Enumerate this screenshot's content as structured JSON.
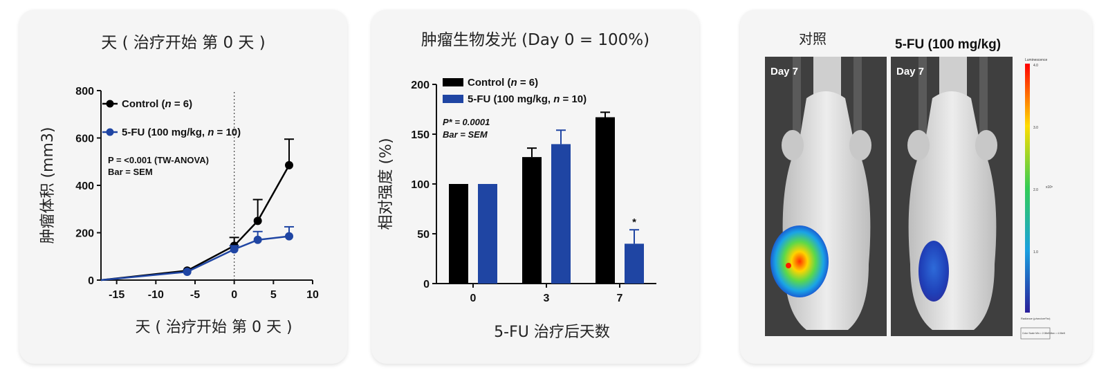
{
  "panels": {
    "left": {
      "title": "天 ( 治疗开始 第 0 天 )",
      "xlabel": "天 ( 治疗开始 第 0 天 )",
      "ylabel": "肿瘤体积 (mm3)",
      "note_line1": "P = <0.001 (TW-ANOVA)",
      "note_line2": "Bar = SEM"
    },
    "middle": {
      "title": "肿瘤生物发光 (Day 0 = 100%)",
      "xlabel": "5-FU 治疗后天数",
      "ylabel": "相对强度 (%)",
      "note_line1": "P* = 0.0001",
      "note_line2": "Bar = SEM",
      "star_label": "*"
    },
    "right": {
      "title_left": "对照",
      "title_right": "5-FU (100 mg/kg)",
      "day_left": "Day 7",
      "day_right": "Day 7",
      "scale_title": "Luminescence",
      "scale_ticks": [
        "4.0",
        "3.0",
        "2.0",
        "1.0"
      ],
      "scale_exp": "x10⁸",
      "scale_footer": "Radiance (p/sec/cm²/sr)",
      "scale_box": "Color Scale Min = 2.08e8 Max = 4.06e8"
    }
  },
  "colors": {
    "control": "#000000",
    "treatment": "#1f45a3"
  },
  "chart_data": [
    {
      "type": "line",
      "title": "天 ( 治疗开始 第 0 天 )",
      "xlabel": "天 ( 治疗开始 第 0 天 )",
      "ylabel": "肿瘤体积 (mm3)",
      "xlim": [
        -17,
        10
      ],
      "ylim": [
        0,
        800
      ],
      "xticks": [
        "-15",
        "-10",
        "-5",
        "0",
        "5",
        "10"
      ],
      "yticks": [
        "0",
        "200",
        "400",
        "600",
        "800"
      ],
      "series": [
        {
          "name_prefix": "Control (",
          "name_italic": "n",
          "name_suffix": " = 6)",
          "name": "Control (n = 6)",
          "x": [
            -17,
            -6,
            0,
            3,
            7
          ],
          "y": [
            0,
            40,
            145,
            250,
            485
          ],
          "err": [
            0,
            0,
            35,
            90,
            110
          ],
          "color": "#000000"
        },
        {
          "name_prefix": "5-FU (100 mg/kg, ",
          "name_italic": "n",
          "name_suffix": " = 10)",
          "name": "5-FU (100 mg/kg, n = 10)",
          "x": [
            -17,
            -6,
            0,
            3,
            7
          ],
          "y": [
            0,
            35,
            130,
            170,
            185
          ],
          "err": [
            0,
            0,
            15,
            35,
            40
          ],
          "color": "#1f45a3"
        }
      ],
      "vline_x": 0,
      "grid": false,
      "legend": "top-left"
    },
    {
      "type": "bar",
      "title": "肿瘤生物发光 (Day 0 = 100%)",
      "xlabel": "5-FU 治疗后天数",
      "ylabel": "相对强度 (%)",
      "categories": [
        "0",
        "3",
        "7"
      ],
      "ylim": [
        0,
        200
      ],
      "yticks": [
        "0",
        "50",
        "100",
        "150",
        "200"
      ],
      "series": [
        {
          "name_prefix": "Control (",
          "name_italic": "n",
          "name_suffix": " = 6)",
          "name": "Control (n = 6)",
          "values": [
            100,
            127,
            167
          ],
          "err": [
            0,
            9,
            5
          ],
          "color": "#000000"
        },
        {
          "name_prefix": "5-FU (100 mg/kg, ",
          "name_italic": "n",
          "name_suffix": " = 10)",
          "name": "5-FU (100 mg/kg, n = 10)",
          "values": [
            100,
            140,
            40
          ],
          "err": [
            0,
            14,
            14
          ],
          "color": "#1f45a3"
        }
      ],
      "grid": false,
      "legend": "top-left"
    }
  ]
}
